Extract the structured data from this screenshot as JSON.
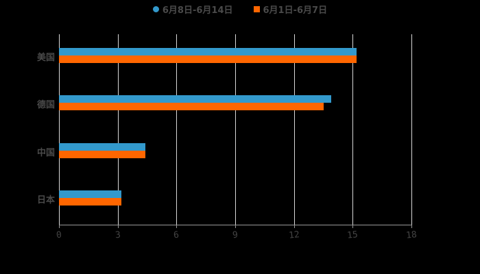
{
  "legend": [
    {
      "label": "6月8日-6月14日",
      "color": "#3399cc",
      "shape": "circle"
    },
    {
      "label": "6月1日-6月7日",
      "color": "#ff6600",
      "shape": "square"
    }
  ],
  "chart_data": {
    "type": "bar",
    "orientation": "horizontal",
    "title": "",
    "xlabel": "",
    "ylabel": "",
    "categories": [
      "美国",
      "德国",
      "中国",
      "日本"
    ],
    "series": [
      {
        "name": "6月8日-6月14日",
        "color": "#3399cc",
        "values": [
          15.2,
          13.9,
          4.4,
          3.2
        ]
      },
      {
        "name": "6月1日-6月7日",
        "color": "#ff6600",
        "values": [
          15.2,
          13.5,
          4.4,
          3.2
        ]
      }
    ],
    "xlim": [
      0,
      18
    ],
    "xticks": [
      "0",
      "3",
      "6",
      "9",
      "12",
      "15",
      "18"
    ],
    "grid": true,
    "legend_position": "top"
  }
}
